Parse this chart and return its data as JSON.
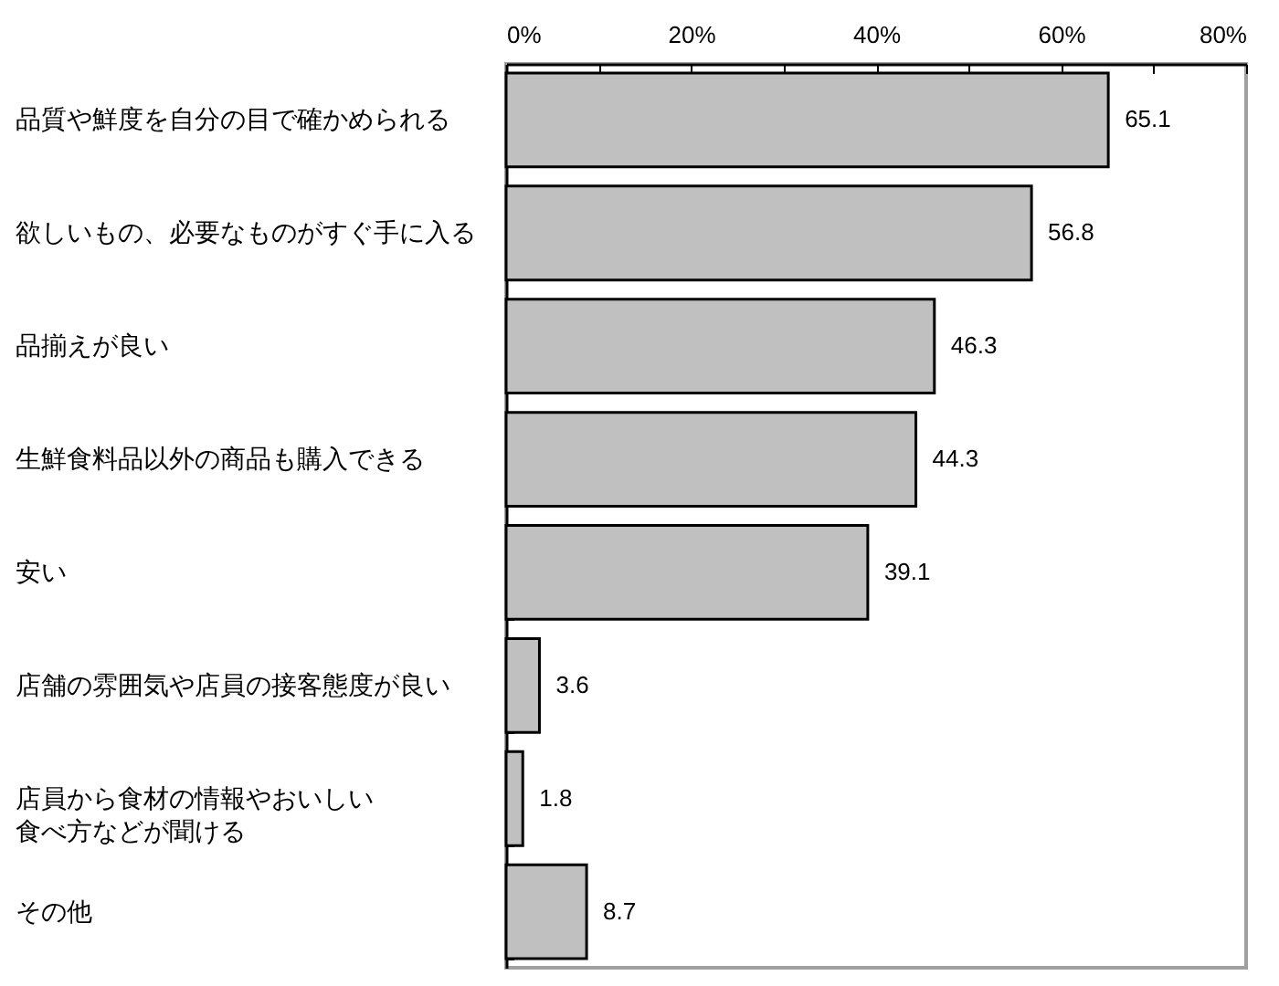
{
  "chart_data": {
    "type": "bar",
    "orientation": "horizontal",
    "categories": [
      "品質や鮮度を自分の目で確かめられる",
      "欲しいもの、必要なものがすぐ手に入る",
      "品揃えが良い",
      "生鮮食料品以外の商品も購入できる",
      "安い",
      "店舗の雰囲気や店員の接客態度が良い",
      "店員から食材の情報やおいしい食べ方などが聞ける",
      "その他"
    ],
    "values": [
      65.1,
      56.8,
      46.3,
      44.3,
      39.1,
      3.6,
      1.8,
      8.7
    ],
    "color": "#c0c0c0",
    "xlim": [
      0,
      80
    ],
    "xticks": [
      {
        "value": 0,
        "label": "0%"
      },
      {
        "value": 10,
        "label": null
      },
      {
        "value": 20,
        "label": "20%"
      },
      {
        "value": 30,
        "label": null
      },
      {
        "value": 40,
        "label": "40%"
      },
      {
        "value": 50,
        "label": null
      },
      {
        "value": 60,
        "label": "60%"
      },
      {
        "value": 70,
        "label": null
      },
      {
        "value": 80,
        "label": "80%"
      }
    ],
    "data_labels": true
  }
}
